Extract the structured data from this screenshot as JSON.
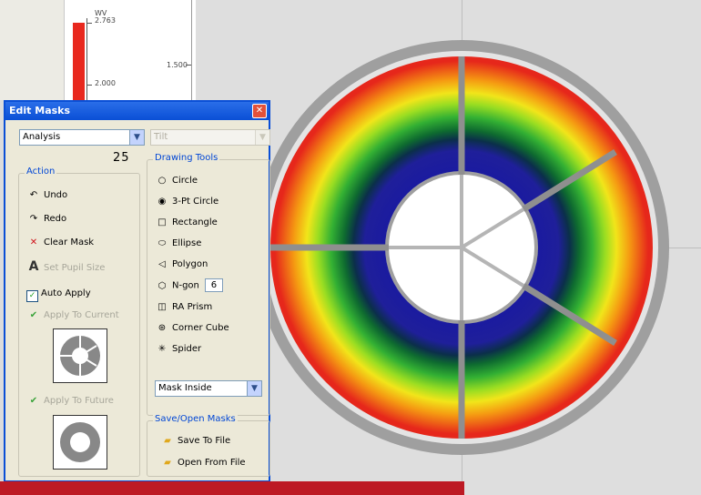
{
  "scale": {
    "unit": "WV",
    "top_value": "2.763",
    "mid_value": "2.000",
    "axis_label": "1.500",
    "top_axis_label": "2.000"
  },
  "dialog": {
    "title": "Edit Masks",
    "mode_select": "Analysis",
    "tilt_select": "Tilt",
    "number_label": "25",
    "action": {
      "label": "Action",
      "undo": "Undo",
      "redo": "Redo",
      "clear_mask": "Clear Mask",
      "set_pupil_size": "Set Pupil Size",
      "auto_apply": "Auto Apply",
      "apply_to_current": "Apply To Current",
      "apply_to_future": "Apply To Future"
    },
    "drawing_tools": {
      "label": "Drawing Tools",
      "circle": "Circle",
      "three_pt_circle": "3-Pt Circle",
      "rectangle": "Rectangle",
      "ellipse": "Ellipse",
      "polygon": "Polygon",
      "ngon": "N-gon",
      "ngon_value": "6",
      "ra_prism": "RA Prism",
      "corner_cube": "Corner Cube",
      "spider": "Spider",
      "mask_mode": "Mask Inside"
    },
    "save_open": {
      "label": "Save/Open Masks",
      "save": "Save To File",
      "open": "Open From File"
    }
  },
  "colors": {
    "title_blue": "#0a4fd6",
    "banner": "#bd1a24",
    "group_label": "#0046d5"
  }
}
